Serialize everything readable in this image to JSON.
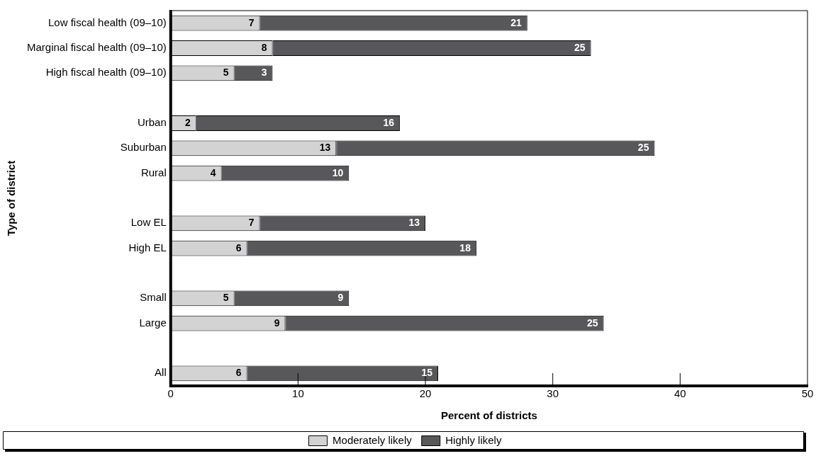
{
  "chart_data": {
    "type": "bar",
    "orientation": "horizontal",
    "stacked": true,
    "ylabel": "Type of district",
    "xlabel": "Percent of districts",
    "categories": [
      "Low fiscal health (09–10)",
      "Marginal fiscal health (09–10)",
      "High fiscal health (09–10)",
      null,
      "Urban",
      "Suburban",
      "Rural",
      null,
      "Low EL",
      "High EL",
      null,
      "Small",
      "Large",
      null,
      "All"
    ],
    "series": [
      {
        "name": "Moderately likely",
        "color": "#d3d3d3",
        "values": [
          7,
          8,
          5,
          null,
          2,
          13,
          4,
          null,
          7,
          6,
          null,
          5,
          9,
          null,
          6
        ]
      },
      {
        "name": "Highly likely",
        "color": "#58585a",
        "values": [
          21,
          25,
          3,
          null,
          16,
          25,
          10,
          null,
          13,
          18,
          null,
          9,
          25,
          null,
          15
        ]
      }
    ],
    "xlim": [
      0,
      50
    ],
    "xticks": [
      0,
      10,
      20,
      30,
      40,
      50
    ],
    "grid": false,
    "legend": "bottom",
    "data_labels": true
  }
}
